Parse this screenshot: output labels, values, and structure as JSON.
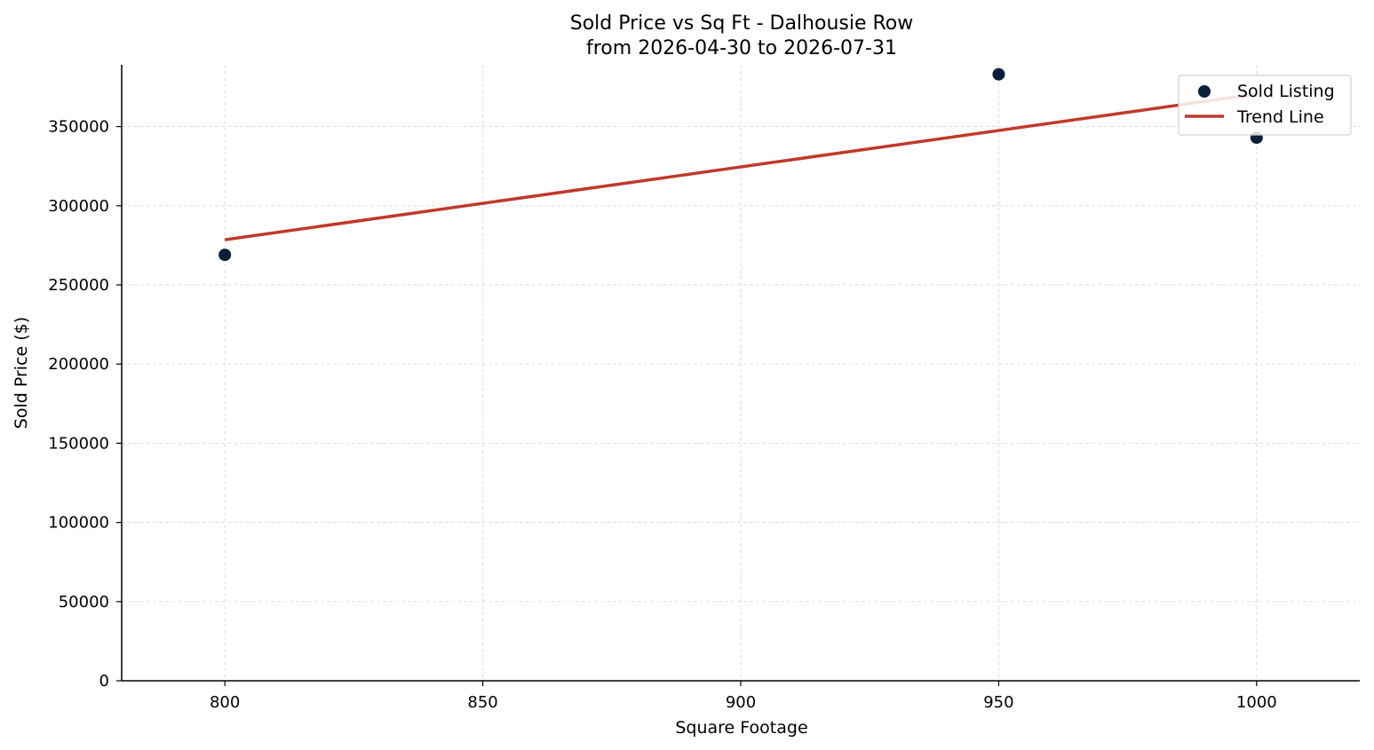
{
  "chart_data": {
    "type": "scatter",
    "title": "Sold Price vs Sq Ft - Dalhousie Row",
    "subtitle": "from 2026-04-30 to 2026-07-31",
    "xlabel": "Square Footage",
    "ylabel": "Sold Price ($)",
    "xlim": [
      780,
      1020
    ],
    "ylim": [
      0,
      389000
    ],
    "xticks": [
      800,
      850,
      900,
      950,
      1000
    ],
    "yticks": [
      0,
      50000,
      100000,
      150000,
      200000,
      250000,
      300000,
      350000
    ],
    "grid": true,
    "legend_position": "top-right",
    "series": [
      {
        "name": "Sold Listing",
        "kind": "scatter",
        "color": "#0b1f3a",
        "points": [
          {
            "x": 800,
            "y": 269000
          },
          {
            "x": 950,
            "y": 383000
          },
          {
            "x": 1000,
            "y": 343000
          }
        ]
      },
      {
        "name": "Trend Line",
        "kind": "line",
        "color": "#c0392b",
        "points": [
          {
            "x": 800,
            "y": 278500
          },
          {
            "x": 1000,
            "y": 370500
          }
        ]
      }
    ]
  }
}
